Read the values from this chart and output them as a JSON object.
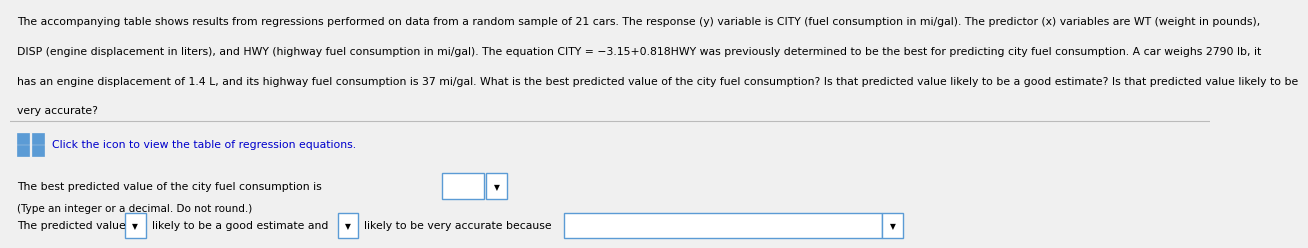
{
  "bg_color": "#f0f0f0",
  "paragraph_line1": "The accompanying table shows results from regressions performed on data from a random sample of 21 cars. The response (y) variable is CITY (fuel consumption in mi/gal). The predictor (x) variables are WT (weight in pounds),",
  "paragraph_line2": "DISP (engine displacement in liters), and HWY (highway fuel consumption in mi/gal). The equation CITY = −3.15+0.818HWY was previously determined to be the best for predicting city fuel consumption. A car weighs 2790 lb, it",
  "paragraph_line3": "has an engine displacement of 1.4 L, and its highway fuel consumption is 37 mi/gal. What is the best predicted value of the city fuel consumption? Is that predicted value likely to be a good estimate? Is that predicted value likely to be",
  "paragraph_line4": "very accurate?",
  "icon_label": "Click the icon to view the table of regression equations.",
  "line1_text": "The best predicted value of the city fuel consumption is",
  "line2_text": "(Type an integer or a decimal. Do not round.)",
  "line3_pre": "The predicted value",
  "line3_mid1": "likely to be a good estimate and",
  "line3_mid2": "likely to be very accurate because",
  "text_color": "#000000",
  "blue_color": "#0000cc",
  "box_border": "#5b9bd5",
  "icon_color": "#5b9bd5",
  "separator_color": "#bbbbbb",
  "font_size_main": 7.8,
  "font_size_small": 7.5
}
